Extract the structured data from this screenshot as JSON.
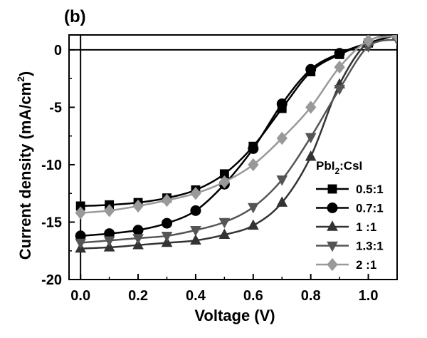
{
  "chart_data": {
    "type": "line",
    "panel_label": "(b)",
    "xlabel": "Voltage (V)",
    "ylabel_main": "Current density (mA/cm",
    "ylabel_sup": "2",
    "ylabel_close": ")",
    "xlim": [
      -0.04,
      1.1
    ],
    "ylim": [
      -20,
      1.3
    ],
    "x_ticks": [
      {
        "value": 0.0,
        "label": "0.0"
      },
      {
        "value": 0.2,
        "label": "0.2"
      },
      {
        "value": 0.4,
        "label": "0.4"
      },
      {
        "value": 0.6,
        "label": "0.6"
      },
      {
        "value": 0.8,
        "label": "0.8"
      },
      {
        "value": 1.0,
        "label": "1.0"
      }
    ],
    "y_ticks": [
      {
        "value": 0,
        "label": "0"
      },
      {
        "value": -5,
        "label": "-5"
      },
      {
        "value": -10,
        "label": "-10"
      },
      {
        "value": -15,
        "label": "-15"
      },
      {
        "value": -20,
        "label": "-20"
      }
    ],
    "reference_lines": {
      "x": 0,
      "y": 0
    },
    "legend": {
      "title_main": "PbI",
      "title_sub": "2",
      "title_rest": ":CsI",
      "position": "right"
    },
    "series": [
      {
        "name": "0.5:1",
        "marker": "square",
        "color": "#000000",
        "x": [
          0.0,
          0.1,
          0.2,
          0.3,
          0.4,
          0.5,
          0.6,
          0.7,
          0.8,
          0.9,
          1.0,
          1.1
        ],
        "y": [
          -13.6,
          -13.5,
          -13.3,
          -12.9,
          -12.2,
          -10.8,
          -8.4,
          -5.1,
          -1.9,
          -0.4,
          0.6,
          1.3
        ]
      },
      {
        "name": "0.7:1",
        "marker": "circle",
        "color": "#000000",
        "x": [
          0.0,
          0.1,
          0.2,
          0.3,
          0.4,
          0.5,
          0.6,
          0.7,
          0.8,
          0.9,
          1.0,
          1.1
        ],
        "y": [
          -16.2,
          -16.0,
          -15.7,
          -15.1,
          -14.0,
          -11.7,
          -8.6,
          -4.7,
          -1.7,
          -0.3,
          0.6,
          1.3
        ]
      },
      {
        "name": "1 :1",
        "marker": "triangle-up",
        "color": "#333333",
        "x": [
          0.0,
          0.1,
          0.2,
          0.3,
          0.4,
          0.5,
          0.6,
          0.7,
          0.8,
          0.9,
          1.0,
          1.1
        ],
        "y": [
          -17.3,
          -17.2,
          -17.0,
          -16.8,
          -16.6,
          -16.1,
          -15.3,
          -13.3,
          -9.3,
          -3.0,
          0.7,
          1.2
        ]
      },
      {
        "name": "1.3:1",
        "marker": "triangle-down",
        "color": "#555555",
        "x": [
          0.0,
          0.1,
          0.2,
          0.3,
          0.4,
          0.5,
          0.6,
          0.7,
          0.8,
          0.9,
          1.0,
          1.1
        ],
        "y": [
          -16.8,
          -16.6,
          -16.4,
          -16.2,
          -15.7,
          -15.0,
          -13.7,
          -11.3,
          -7.6,
          -3.4,
          0.3,
          0.9
        ]
      },
      {
        "name": "2 :1",
        "marker": "diamond",
        "color": "#999999",
        "x": [
          0.0,
          0.1,
          0.2,
          0.3,
          0.4,
          0.5,
          0.6,
          0.7,
          0.8,
          0.9,
          1.0,
          1.1
        ],
        "y": [
          -14.2,
          -14.0,
          -13.6,
          -13.1,
          -12.5,
          -11.5,
          -10.0,
          -7.7,
          -5.0,
          -1.5,
          0.8,
          1.2
        ]
      }
    ]
  }
}
